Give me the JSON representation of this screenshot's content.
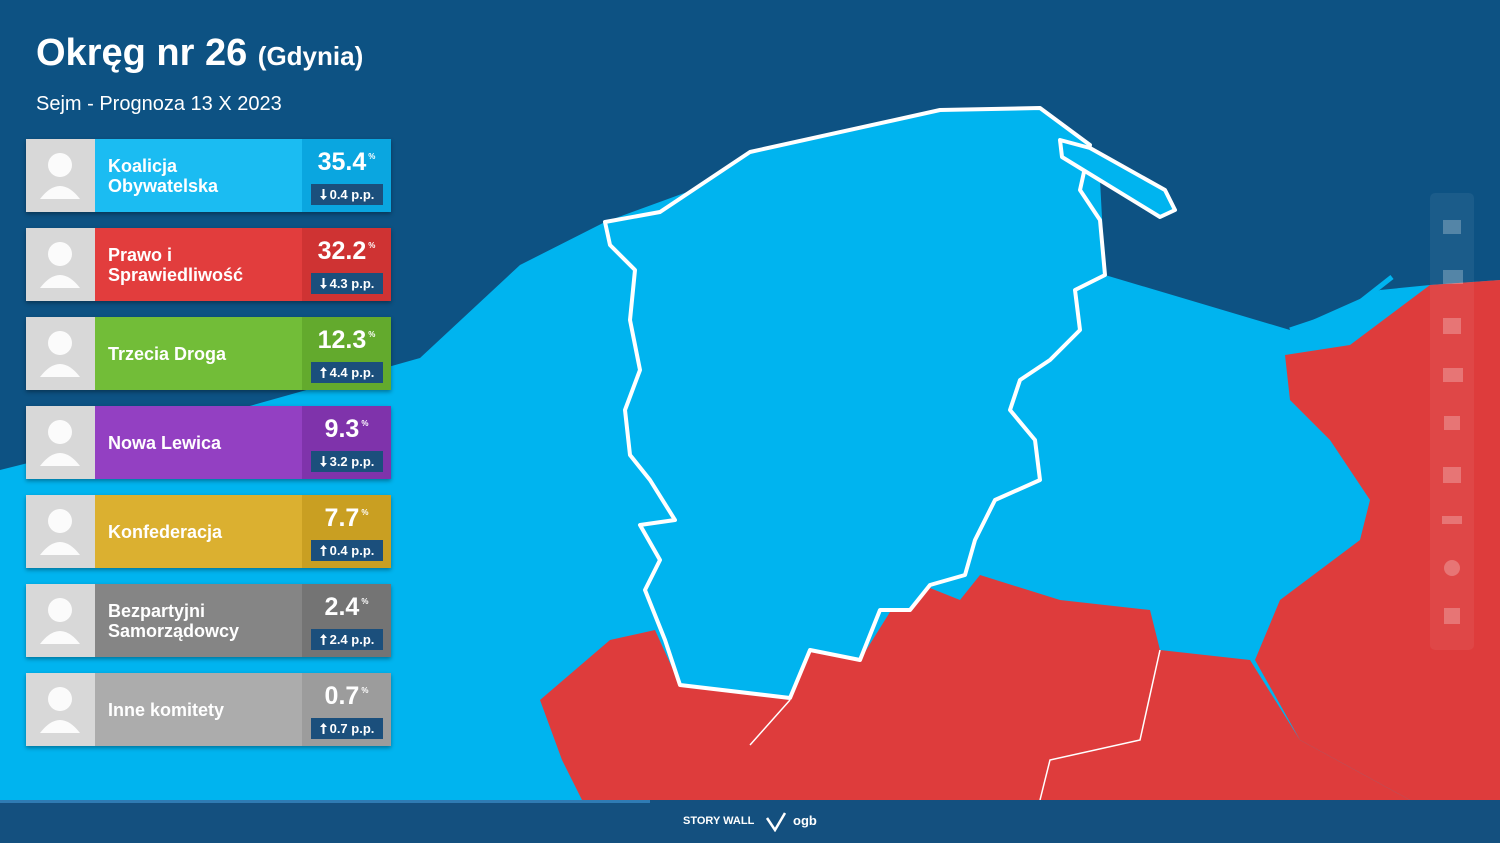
{
  "header": {
    "title": "Okręg nr 26",
    "title_suffix": "(Gdynia)",
    "subtitle": "Sejm - Prognoza 13 X 2023"
  },
  "parties": [
    {
      "name": "Koalicja Obywatelska",
      "value": 35.4,
      "unit": "%",
      "change": "0.4 p.p.",
      "direction": "down",
      "color": "#1bbcf2",
      "panel": "#0aa6e0"
    },
    {
      "name": "Prawo i Sprawiedliwość",
      "value": 32.2,
      "unit": "%",
      "change": "4.3 p.p.",
      "direction": "down",
      "color": "#e23d3d",
      "panel": "#cf3333"
    },
    {
      "name": "Trzecia Droga",
      "value": 12.3,
      "unit": "%",
      "change": "4.4 p.p.",
      "direction": "up",
      "color": "#72bd38",
      "panel": "#63aa2d"
    },
    {
      "name": "Nowa Lewica",
      "value": 9.3,
      "unit": "%",
      "change": "3.2 p.p.",
      "direction": "down",
      "color": "#9340c2",
      "panel": "#7f33ab"
    },
    {
      "name": "Konfederacja",
      "value": 7.7,
      "unit": "%",
      "change": "0.4 p.p.",
      "direction": "up",
      "color": "#dbb030",
      "panel": "#c99f22"
    },
    {
      "name": "Bezpartyjni Samorządowcy",
      "value": 2.4,
      "unit": "%",
      "change": "2.4 p.p.",
      "direction": "up",
      "color": "#858585",
      "panel": "#747474"
    },
    {
      "name": "Inne komitety",
      "value": 0.7,
      "unit": "%",
      "change": "0.7 p.p.",
      "direction": "up",
      "color": "#acacac",
      "panel": "#9c9c9c"
    }
  ],
  "footer": {
    "brand": "STORY WALL",
    "logo": "ogb"
  }
}
